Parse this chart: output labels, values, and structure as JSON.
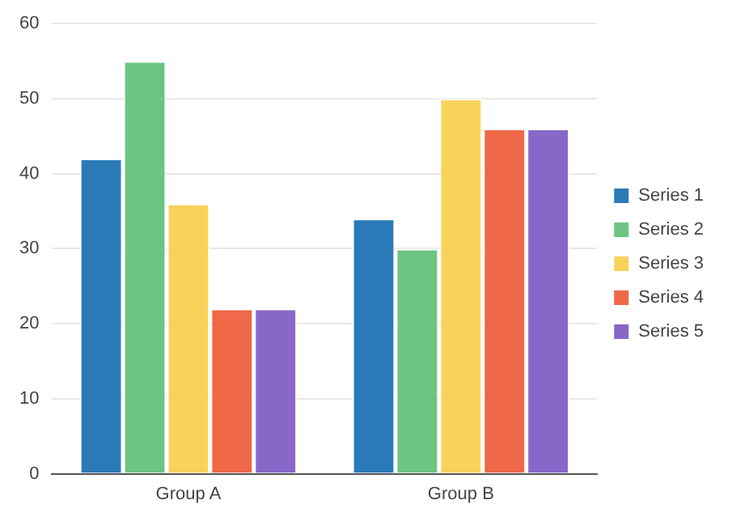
{
  "chart_data": {
    "type": "bar",
    "categories": [
      "Group A",
      "Group B"
    ],
    "series": [
      {
        "name": "Series 1",
        "color": "#2a7ab7",
        "values": [
          42,
          34
        ]
      },
      {
        "name": "Series 2",
        "color": "#6cc583",
        "values": [
          55,
          30
        ]
      },
      {
        "name": "Series 3",
        "color": "#f8d35c",
        "values": [
          36,
          50
        ]
      },
      {
        "name": "Series 4",
        "color": "#ef6848",
        "values": [
          22,
          46
        ]
      },
      {
        "name": "Series 5",
        "color": "#8867c9",
        "values": [
          22,
          46
        ]
      }
    ],
    "ylim": [
      0,
      60
    ],
    "yticks": [
      0,
      10,
      20,
      30,
      40,
      50,
      60
    ],
    "grid": "y",
    "legend": "right"
  }
}
